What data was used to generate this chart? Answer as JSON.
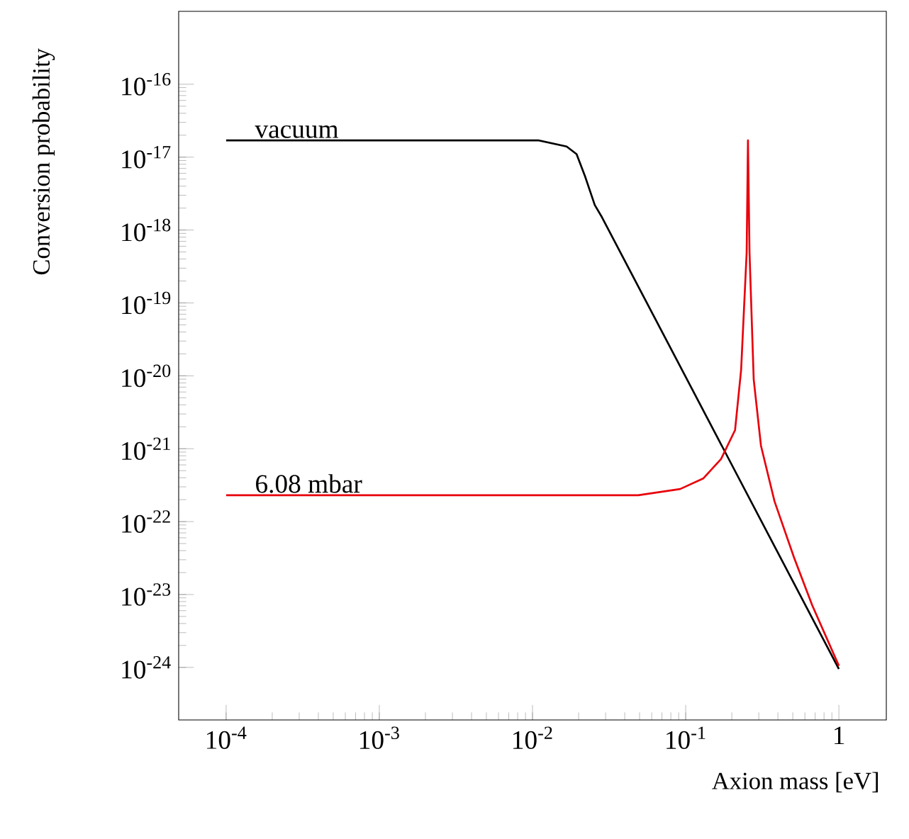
{
  "chart_data": {
    "type": "line",
    "xlabel": "Axion mass [eV]",
    "ylabel": "Conversion probability",
    "log": "xy",
    "xlim": [
      4.9e-05,
      2.04
    ],
    "ylim": [
      1.9e-25,
      1e-15
    ],
    "xticks": [
      {
        "value": 0.0001,
        "label": "10$^{-4}$"
      },
      {
        "value": 0.001,
        "label": "10$^{-3}$"
      },
      {
        "value": 0.01,
        "label": "10$^{-2}$"
      },
      {
        "value": 0.1,
        "label": "10$^{-1}$"
      },
      1
    ],
    "yticks": [
      {
        "value": 1e-24,
        "label": "10$^{-24}$"
      },
      {
        "value": 1e-23,
        "label": "10$^{-23}$"
      },
      {
        "value": 1e-22,
        "label": "10$^{-22}$"
      },
      {
        "value": 1e-21,
        "label": "10$^{-21}$"
      },
      {
        "value": 1e-20,
        "label": "10$^{-20}$"
      },
      {
        "value": 1e-19,
        "label": "10$^{-19}$"
      },
      {
        "value": 1e-18,
        "label": "10$^{-18}$"
      },
      {
        "value": 1e-17,
        "label": "10$^{-17}$"
      },
      {
        "value": 1e-16,
        "label": "10$^{-16}$"
      }
    ],
    "grid": false,
    "marker": "none",
    "line_style": "solid",
    "series": [
      {
        "name": "vacuum",
        "color": "#000000",
        "x": [
          0.0001,
          0.001,
          0.01,
          0.0109,
          0.0167,
          0.0194,
          0.022,
          0.0255,
          0.0284,
          1
        ],
        "values": [
          1.7e-17,
          1.7e-17,
          1.7e-17,
          1.7e-17,
          1.4e-17,
          1.1e-17,
          5.5e-18,
          2.2e-18,
          1.5e-18,
          9.5e-25
        ]
      },
      {
        "name": "6.08 mbar",
        "color": "#e8000b",
        "x": [
          0.0001,
          0.01,
          0.049,
          0.092,
          0.13,
          0.17,
          0.21,
          0.23,
          0.25,
          0.255,
          0.261,
          0.278,
          0.31,
          0.38,
          0.51,
          0.67,
          1
        ],
        "values": [
          2.3e-22,
          2.3e-22,
          2.3e-22,
          2.8e-22,
          3.9e-22,
          7.2e-22,
          1.8e-21,
          1.2e-20,
          4.9e-19,
          1.7e-17,
          4.9e-19,
          8.9e-21,
          1.1e-21,
          1.9e-22,
          3.2e-23,
          7.1e-24,
          1.05e-24
        ]
      }
    ]
  }
}
